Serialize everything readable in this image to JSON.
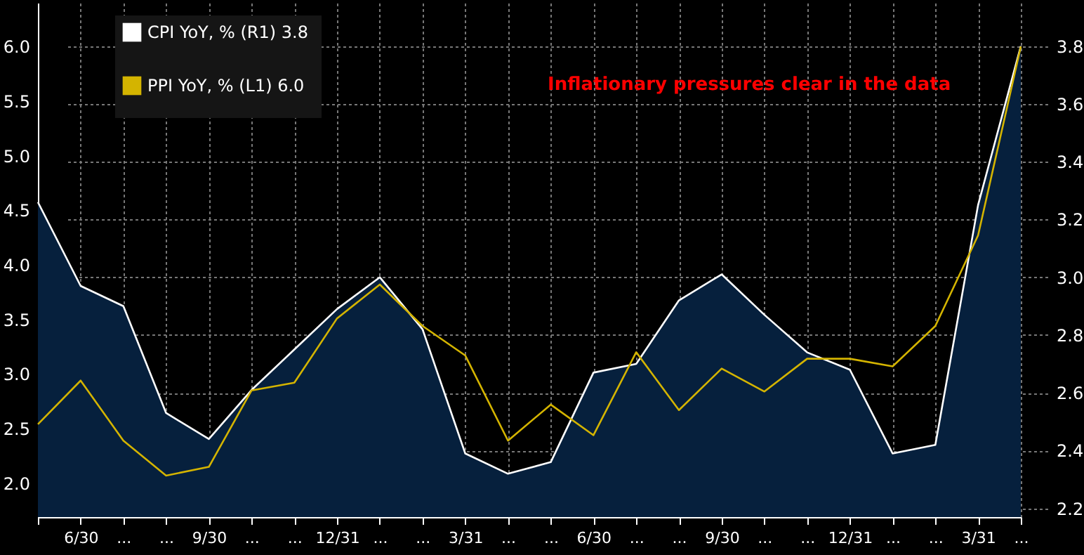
{
  "chart_data": {
    "type": "line",
    "annotations": [
      "Inflationary pressures clear in the data"
    ],
    "categories": [
      null,
      "6/30",
      "...",
      "...",
      "9/30",
      "...",
      "...",
      "12/31",
      "...",
      "...",
      "3/31",
      "...",
      "...",
      "6/30",
      "...",
      "...",
      "9/30",
      "...",
      "...",
      "12/31",
      "...",
      "...",
      "3/31",
      "..."
    ],
    "series": [
      {
        "name": "CPI YoY, %  (R1) 3.8",
        "type": "area",
        "axis": "y2",
        "color": "#ffffff",
        "values": [
          3.26,
          2.97,
          2.9,
          2.53,
          2.44,
          2.61,
          2.75,
          2.89,
          3.0,
          2.82,
          2.39,
          2.32,
          2.36,
          2.67,
          2.7,
          2.92,
          3.01,
          2.87,
          2.74,
          2.68,
          2.39,
          2.42,
          3.25,
          3.8
        ]
      },
      {
        "name": "PPI YoY, % (L1)  6.0",
        "color": "#d4b400",
        "values": [
          2.54,
          2.94,
          2.39,
          2.07,
          2.15,
          2.85,
          2.92,
          3.51,
          3.82,
          3.44,
          3.17,
          2.39,
          2.72,
          2.44,
          3.2,
          2.67,
          3.05,
          2.84,
          3.14,
          3.14,
          3.07,
          3.44,
          4.27,
          6.0
        ]
      }
    ],
    "ylim": [
      1.69,
      6.4
    ],
    "yticks": [
      {
        "value": 2,
        "label": "2.0"
      },
      {
        "value": 2.5,
        "label": "2.5"
      },
      {
        "value": 3,
        "label": "3.0"
      },
      {
        "value": 3.5,
        "label": "3.5"
      },
      {
        "value": 4,
        "label": "4.0"
      },
      {
        "value": 4.5,
        "label": "4.5"
      },
      {
        "value": 5,
        "label": "5.0"
      },
      {
        "value": 5.5,
        "label": "5.5"
      },
      {
        "value": 6,
        "label": "6.0"
      }
    ],
    "y2lim": [
      2.17,
      3.95
    ],
    "y2ticks": [
      {
        "value": 2.2,
        "label": "2.2"
      },
      {
        "value": 2.4,
        "label": "2.4"
      },
      {
        "value": 2.6,
        "label": "2.6"
      },
      {
        "value": 2.8,
        "label": "2.8"
      },
      {
        "value": 3,
        "label": "3.0"
      },
      {
        "value": 3.2,
        "label": "3.2"
      },
      {
        "value": 3.4,
        "label": "3.4"
      },
      {
        "value": 3.6,
        "label": "3.6"
      },
      {
        "value": 3.8,
        "label": "3.8"
      }
    ],
    "grid": true,
    "legend": "top left"
  }
}
